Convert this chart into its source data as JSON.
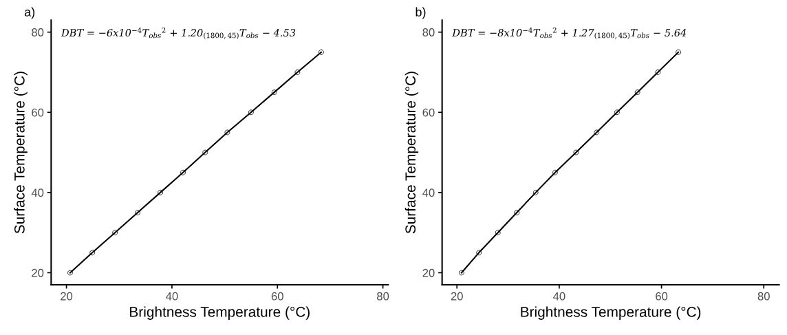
{
  "chart_data": [
    {
      "type": "line",
      "title": "a)",
      "xlabel": "Brightness Temperature (°C)",
      "ylabel": "Surface Temperature (°C)",
      "marker": "circle",
      "line_style": "solid",
      "grid": false,
      "xlim": [
        17.1,
        81
      ],
      "xticks": [
        20,
        40,
        60,
        80
      ],
      "ylim": [
        17,
        83
      ],
      "yticks": [
        20,
        40,
        60,
        80
      ],
      "annotations": [
        "DBT = −6x10$^{−4}$T$_{obs}$$^{2}$ + 1.20$_{(1800,45)}$T$_{obs}$ − 4.53"
      ],
      "series": [
        {
          "color": "#000000",
          "x": [
            20.7,
            24.9,
            29.2,
            33.5,
            37.8,
            42.1,
            46.3,
            50.5,
            55.0,
            59.4,
            63.8,
            68.3
          ],
          "values": [
            20,
            25,
            30,
            35,
            40,
            45,
            50,
            55,
            60,
            65,
            70,
            75
          ]
        }
      ]
    },
    {
      "type": "line",
      "title": "b)",
      "xlabel": "Brightness Temperature (°C)",
      "ylabel": "Surface Temperature (°C)",
      "marker": "circle",
      "line_style": "solid",
      "grid": false,
      "xlim": [
        17.1,
        83
      ],
      "xticks": [
        20,
        40,
        60,
        80
      ],
      "ylim": [
        17,
        83
      ],
      "yticks": [
        20,
        40,
        60,
        80
      ],
      "annotations": [
        "DBT = −8x10$^{−4}$T$_{obs}$$^{2}$ + 1.27$_{(1800,45)}$T$_{obs}$ − 5.64"
      ],
      "series": [
        {
          "color": "#000000",
          "x": [
            20.9,
            24.3,
            28.0,
            31.7,
            35.4,
            39.2,
            43.3,
            47.3,
            51.3,
            55.3,
            59.3,
            63.3
          ],
          "values": [
            20,
            25,
            30,
            35,
            40,
            45,
            50,
            55,
            60,
            65,
            70,
            75
          ]
        }
      ]
    }
  ]
}
